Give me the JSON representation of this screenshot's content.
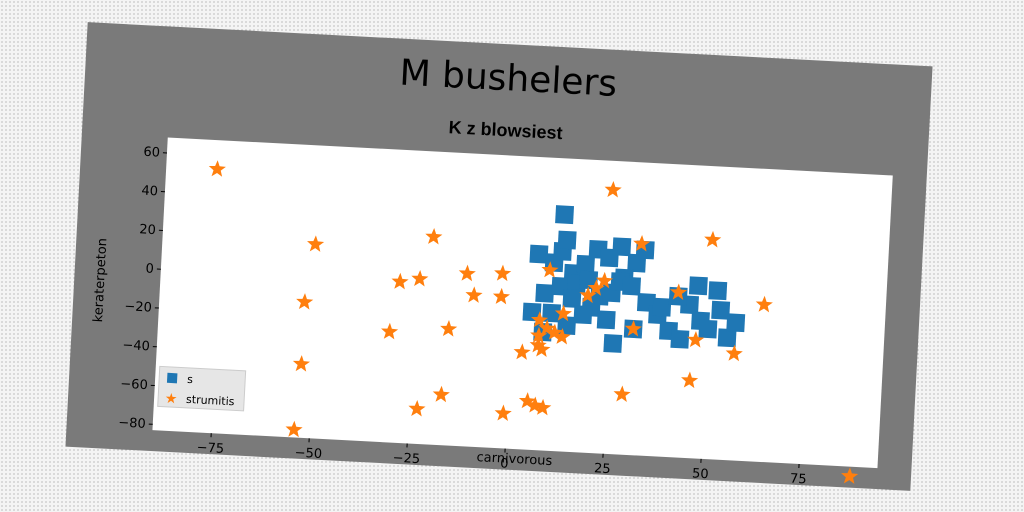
{
  "title": "M bushelers",
  "subtitle": "K z blowsiest",
  "colors": {
    "s": "#1f77b4",
    "strumitis": "#ff7f0e",
    "panel": "#7a7a7a"
  },
  "chart_data": {
    "type": "scatter",
    "title": "K z blowsiest",
    "xlabel": "carnivorous",
    "ylabel": "keraterpeton",
    "xlim": [
      -90,
      95
    ],
    "ylim": [
      -83,
      68
    ],
    "xticks": [
      -75,
      -50,
      -25,
      0,
      25,
      50,
      75
    ],
    "yticks": [
      60,
      40,
      20,
      0,
      -20,
      -40,
      -60,
      -80
    ],
    "xtick_labels": [
      "−75",
      "−50",
      "−25",
      "0",
      "25",
      "50",
      "75"
    ],
    "ytick_labels": [
      "60",
      "40",
      "20",
      "0",
      "−20",
      "−40",
      "−60",
      "−80"
    ],
    "grid": false,
    "legend": "lower-left",
    "series": [
      {
        "name": "s",
        "marker": "square",
        "points": [
          [
            6,
            18
          ],
          [
            10,
            14
          ],
          [
            12,
            20
          ],
          [
            15,
            9
          ],
          [
            18,
            14
          ],
          [
            21,
            22
          ],
          [
            24,
            18
          ],
          [
            27,
            24
          ],
          [
            31,
            16
          ],
          [
            33,
            23
          ],
          [
            28,
            8
          ],
          [
            8,
            -2
          ],
          [
            12,
            2
          ],
          [
            16,
            4
          ],
          [
            19,
            6
          ],
          [
            22,
            -2
          ],
          [
            25,
            0
          ],
          [
            27,
            6
          ],
          [
            30,
            4
          ],
          [
            34,
            -4
          ],
          [
            10,
            -12
          ],
          [
            14,
            -18
          ],
          [
            20,
            -8
          ],
          [
            24,
            -14
          ],
          [
            26,
            -26
          ],
          [
            31,
            -18
          ],
          [
            37,
            -10
          ],
          [
            40,
            -18
          ],
          [
            43,
            -22
          ],
          [
            45,
            -4
          ],
          [
            48,
            -12
          ],
          [
            50,
            -16
          ],
          [
            53,
            -6
          ],
          [
            55,
            -20
          ],
          [
            57,
            -12
          ],
          [
            52,
            4
          ],
          [
            5,
            -12
          ],
          [
            8,
            -22
          ],
          [
            15,
            -4
          ],
          [
            18,
            -12
          ],
          [
            13,
            26
          ],
          [
            12,
            39
          ],
          [
            38,
            -6
          ],
          [
            42,
            0
          ],
          [
            47,
            6
          ]
        ]
      },
      {
        "name": "strumitis",
        "marker": "star",
        "points": [
          [
            -77,
            53
          ],
          [
            -51,
            17
          ],
          [
            -53,
            -13
          ],
          [
            -53,
            -45
          ],
          [
            -54,
            -79
          ],
          [
            -29,
            0
          ],
          [
            -24,
            2
          ],
          [
            -21,
            24
          ],
          [
            -12,
            6
          ],
          [
            -10,
            -5
          ],
          [
            -3,
            7
          ],
          [
            -3,
            -5
          ],
          [
            -31,
            -26
          ],
          [
            -16,
            -23
          ],
          [
            -17,
            -57
          ],
          [
            -23,
            -65
          ],
          [
            -1,
            -65
          ],
          [
            3,
            -33
          ],
          [
            5,
            -58
          ],
          [
            7,
            -60
          ],
          [
            9,
            -61
          ],
          [
            7,
            -24
          ],
          [
            9,
            -20
          ],
          [
            7,
            -16
          ],
          [
            11,
            -22
          ],
          [
            13,
            -24
          ],
          [
            7,
            -29
          ],
          [
            8,
            -31
          ],
          [
            13,
            -12
          ],
          [
            21,
            2
          ],
          [
            23,
            6
          ],
          [
            24,
            53
          ],
          [
            32,
            26
          ],
          [
            29,
            -52
          ],
          [
            31,
            -18
          ],
          [
            42,
            2
          ],
          [
            47,
            -22
          ],
          [
            46,
            -43
          ],
          [
            50,
            30
          ],
          [
            57,
            -28
          ],
          [
            64,
            -2
          ],
          [
            88,
            -88
          ],
          [
            9,
            10
          ],
          [
            19,
            -2
          ]
        ]
      }
    ]
  }
}
